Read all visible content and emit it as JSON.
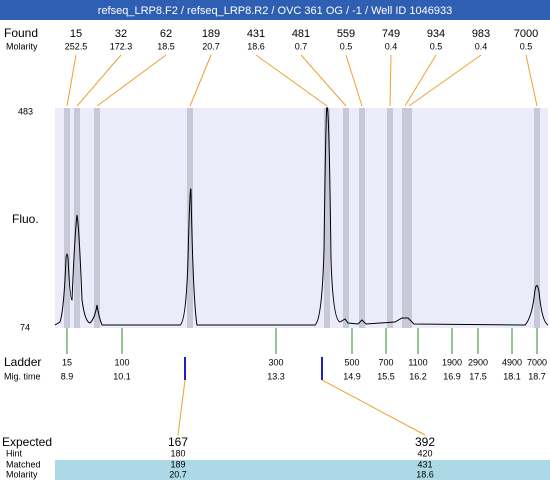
{
  "header": {
    "title": "refseq_LRP8.F2 / refseq_LRP8.R2 / OVC 361 OG / -1 / Well ID 1046933"
  },
  "found": {
    "label": "Found",
    "sublabel": "Molarity",
    "peaks": [
      {
        "size": 15,
        "molarity": 252.5
      },
      {
        "size": 32,
        "molarity": 172.3
      },
      {
        "size": 62,
        "molarity": 18.5
      },
      {
        "size": 189,
        "molarity": 20.7
      },
      {
        "size": 431,
        "molarity": 18.6
      },
      {
        "size": 481,
        "molarity": 0.7
      },
      {
        "size": 559,
        "molarity": 0.5
      },
      {
        "size": 749,
        "molarity": 0.4
      },
      {
        "size": 934,
        "molarity": 0.5
      },
      {
        "size": 983,
        "molarity": 0.4
      },
      {
        "size": 7000,
        "molarity": 0.5
      }
    ]
  },
  "plot": {
    "y_label": "Fluo.",
    "y_max": 483,
    "y_min": 74
  },
  "ladder": {
    "label": "Ladder",
    "sublabel": "Mig. time",
    "steps": [
      {
        "size": 15,
        "time": 8.9
      },
      {
        "size": 100,
        "time": 10.1
      },
      {
        "size": 300,
        "time": 13.3
      },
      {
        "size": 500,
        "time": 14.9
      },
      {
        "size": 700,
        "time": 15.5
      },
      {
        "size": 1100,
        "time": 16.2
      },
      {
        "size": 1900,
        "time": 16.9
      },
      {
        "size": 2900,
        "time": 17.5
      },
      {
        "size": 4900,
        "time": 18.1
      },
      {
        "size": 7000,
        "time": 18.7
      }
    ]
  },
  "expected": {
    "labels": [
      "Expected",
      "Hint",
      "Matched",
      "Molarity"
    ],
    "items": [
      {
        "expected": 167,
        "hint": 180,
        "matched": 189,
        "molarity": 20.7
      },
      {
        "expected": 392,
        "hint": 420,
        "matched": 431,
        "molarity": 18.6
      }
    ]
  }
}
